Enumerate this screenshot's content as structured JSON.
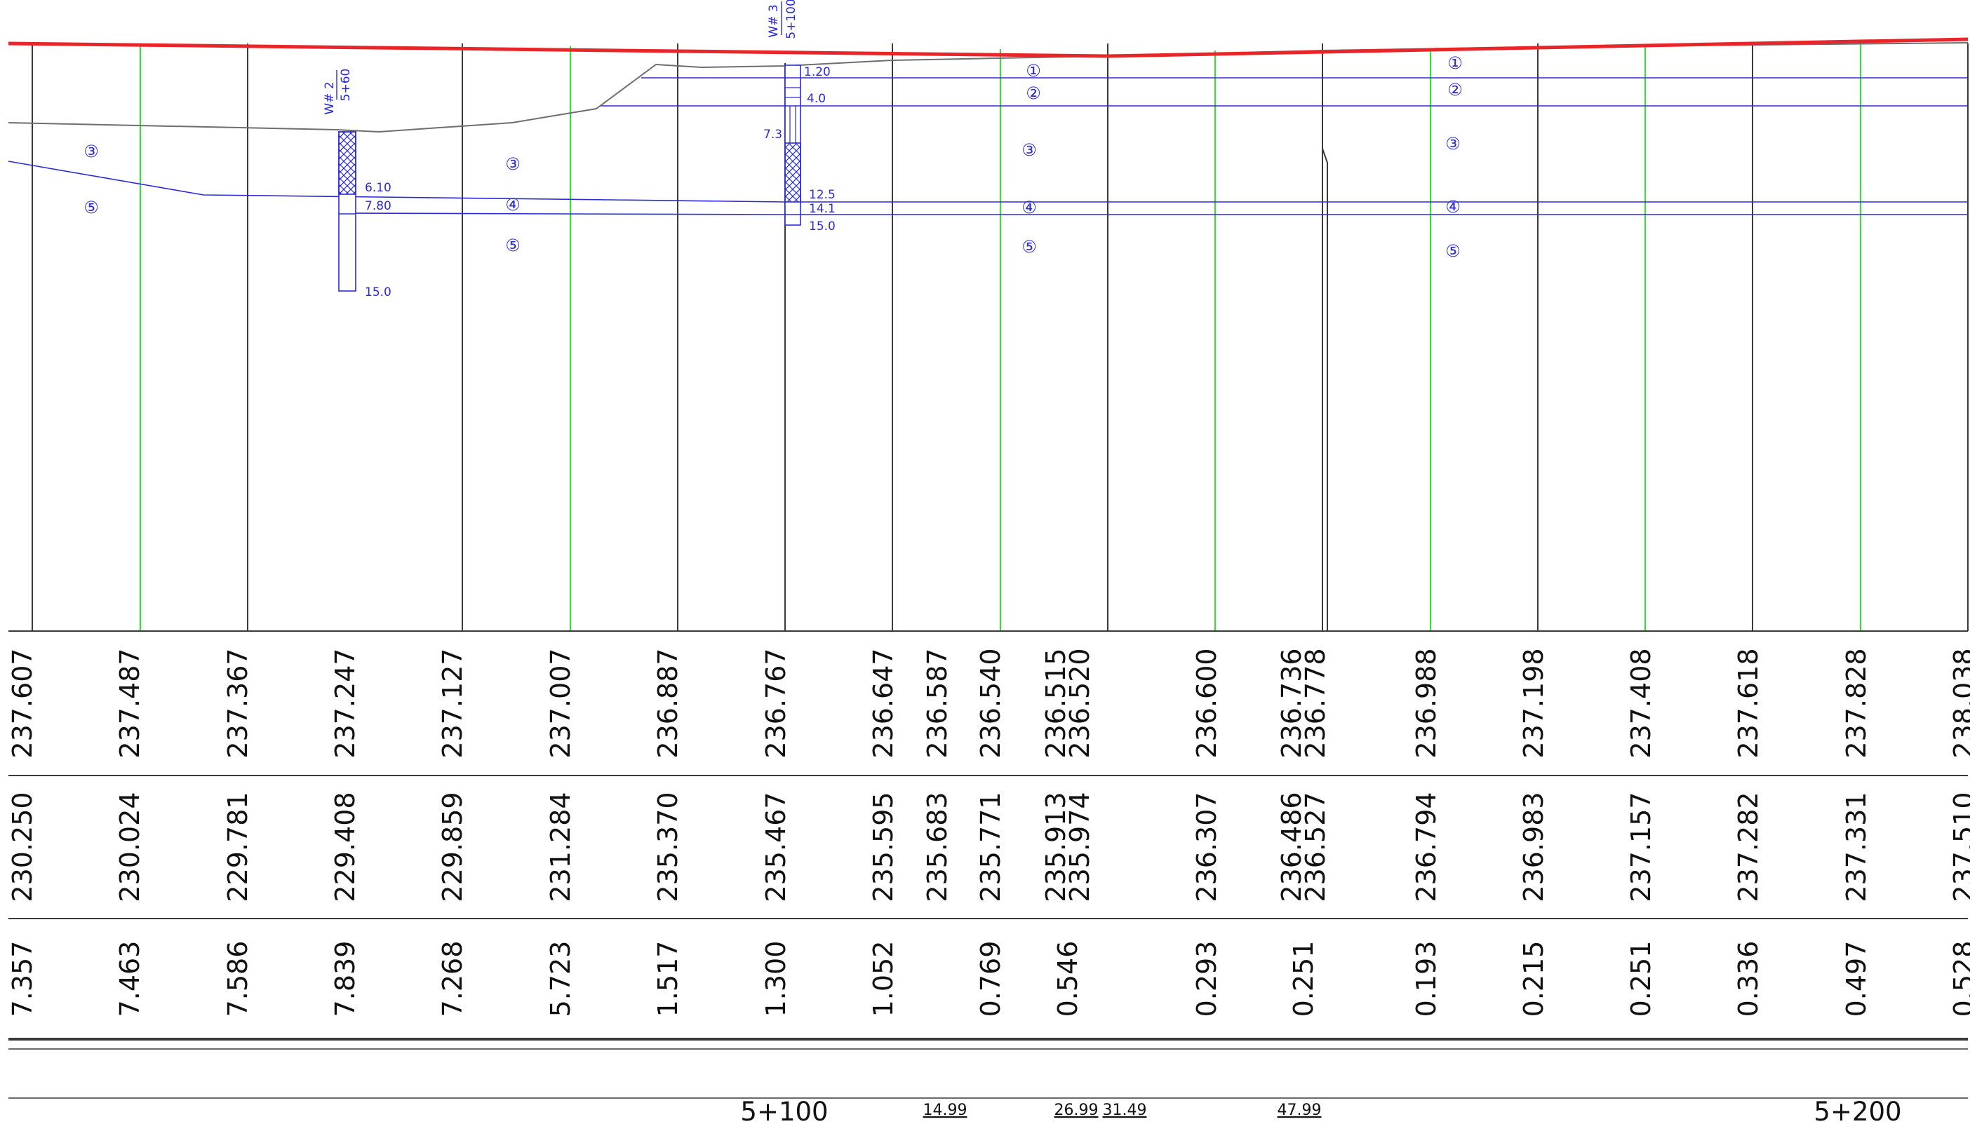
{
  "colors": {
    "design_line": "#e8262a",
    "station_line": "#3a3a3a",
    "midline": "#2ee62e",
    "geology": "#2b2bd6",
    "ground": "#6e6e6e",
    "text": "#111111"
  },
  "rows": {
    "design_elevation": [
      [
        "237.607"
      ],
      [
        "237.487"
      ],
      [
        "237.367"
      ],
      [
        "237.247"
      ],
      [
        "237.127"
      ],
      [
        "237.007"
      ],
      [
        "236.887"
      ],
      [
        "236.767"
      ],
      [
        "236.647"
      ],
      [
        "236.587"
      ],
      [
        "236.540"
      ],
      [
        "236.515",
        "236.520"
      ],
      [
        "236.600"
      ],
      [
        "236.736",
        "236.778"
      ],
      [
        "236.988"
      ],
      [
        "237.198"
      ],
      [
        "237.408"
      ],
      [
        "237.618"
      ],
      [
        "237.828"
      ],
      [
        "238.038"
      ]
    ],
    "ground_elevation": [
      [
        "230.250"
      ],
      [
        "230.024"
      ],
      [
        "229.781"
      ],
      [
        "229.408"
      ],
      [
        "229.859"
      ],
      [
        "231.284"
      ],
      [
        "235.370"
      ],
      [
        "235.467"
      ],
      [
        "235.595"
      ],
      [
        "235.683"
      ],
      [
        "235.771"
      ],
      [
        "235.913",
        "235.974"
      ],
      [
        "236.307"
      ],
      [
        "236.486",
        "236.527"
      ],
      [
        "236.794"
      ],
      [
        "236.983"
      ],
      [
        "237.157"
      ],
      [
        "237.282"
      ],
      [
        "237.331"
      ],
      [
        "237.510"
      ]
    ],
    "fill_height": [
      [
        "7.357"
      ],
      [
        "7.463"
      ],
      [
        "7.586"
      ],
      [
        "7.839"
      ],
      [
        "7.268"
      ],
      [
        "5.723"
      ],
      [
        "1.517"
      ],
      [
        "1.300"
      ],
      [
        "1.052"
      ],
      [],
      [
        "0.769"
      ],
      [
        "0.546"
      ],
      [
        "0.293"
      ],
      [
        "0.251"
      ],
      [
        "0.193"
      ],
      [
        "0.215"
      ],
      [
        "0.251"
      ],
      [
        "0.336"
      ],
      [
        "0.497"
      ],
      [
        "0.528"
      ]
    ]
  },
  "stations": [
    "5+100",
    "5+200"
  ],
  "curve_labels": [
    "14.99",
    "26.99",
    "31.49",
    "47.99"
  ],
  "boreholes": [
    {
      "name": "W# 2",
      "station": "5+60",
      "depths": [
        "6.10",
        "7.80",
        "15.0"
      ]
    },
    {
      "name": "W# 3",
      "station": "5+100",
      "depths": [
        "1.20",
        "4.0",
        "7.3",
        "12.5",
        "14.1",
        "15.0"
      ]
    }
  ],
  "layer_markers": [
    "①",
    "②",
    "③",
    "④",
    "⑤"
  ]
}
